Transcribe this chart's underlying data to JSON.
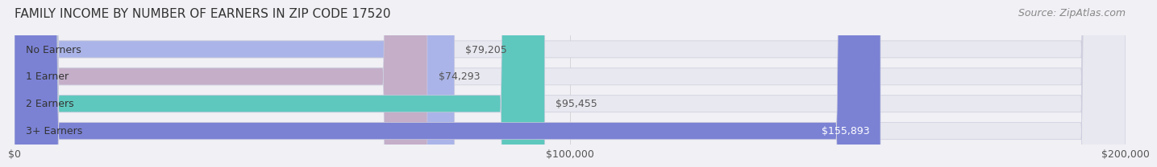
{
  "title": "FAMILY INCOME BY NUMBER OF EARNERS IN ZIP CODE 17520",
  "source": "Source: ZipAtlas.com",
  "categories": [
    "No Earners",
    "1 Earner",
    "2 Earners",
    "3+ Earners"
  ],
  "values": [
    79205,
    74293,
    95455,
    155893
  ],
  "bar_colors": [
    "#aab4e8",
    "#c4aec8",
    "#5ec8be",
    "#7b82d4"
  ],
  "bar_labels": [
    "$79,205",
    "$74,293",
    "$95,455",
    "$155,893"
  ],
  "xlim": [
    0,
    200000
  ],
  "xticks": [
    0,
    100000,
    200000
  ],
  "xtick_labels": [
    "$0",
    "$100,000",
    "$200,000"
  ],
  "background_color": "#f0f0f5",
  "bar_bg_color": "#e8e8f0",
  "title_fontsize": 11,
  "source_fontsize": 9,
  "label_fontsize": 9,
  "tick_fontsize": 9,
  "bar_height": 0.62
}
